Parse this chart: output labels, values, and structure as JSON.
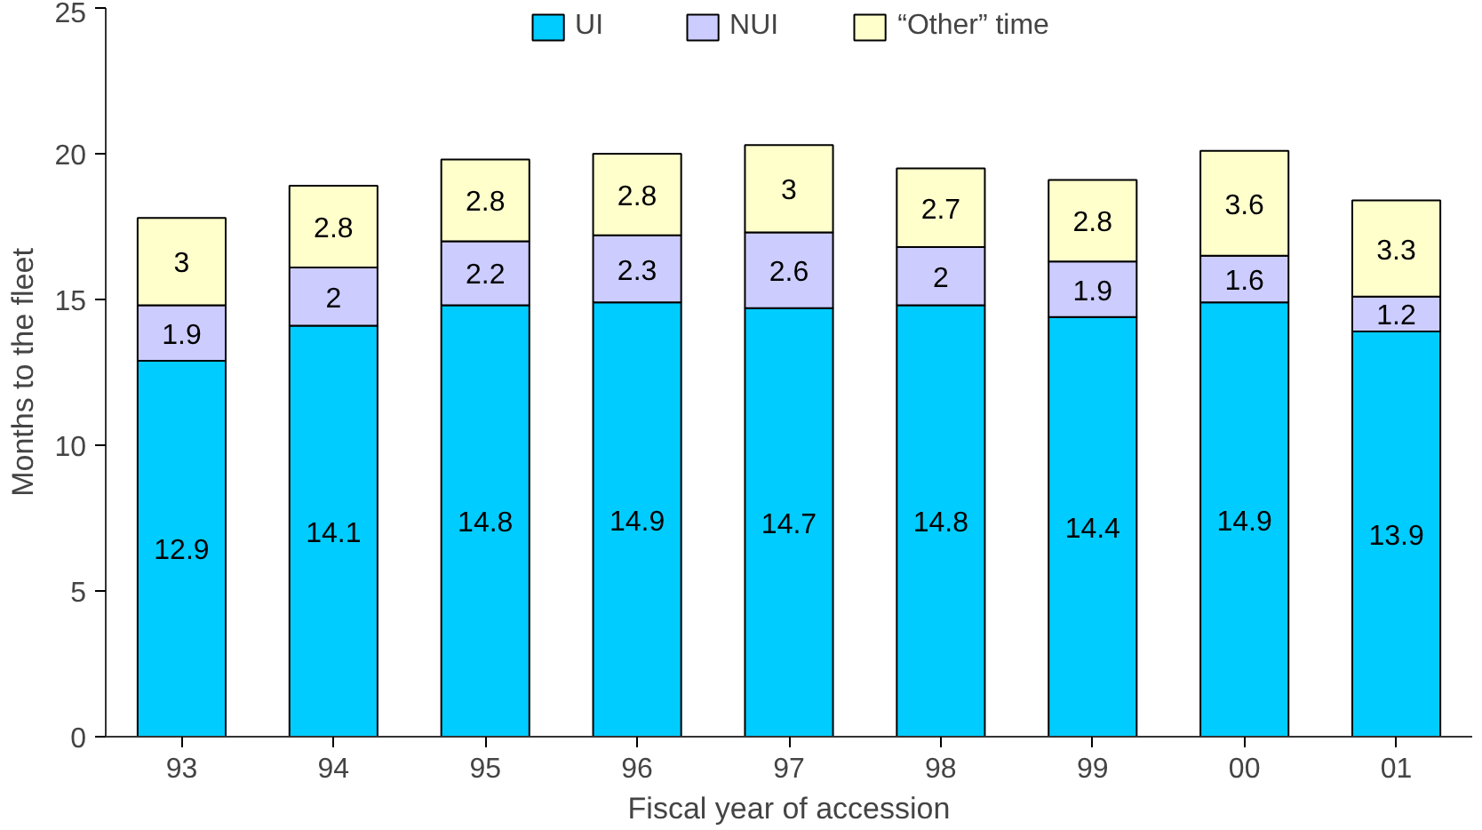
{
  "chart_data": {
    "type": "bar",
    "stacked": true,
    "xlabel": "Fiscal year of accession",
    "ylabel": "Months to the fleet",
    "categories": [
      "93",
      "94",
      "95",
      "96",
      "97",
      "98",
      "99",
      "00",
      "01"
    ],
    "series": [
      {
        "name": "UI",
        "color": "#00ccff",
        "values": [
          12.9,
          14.1,
          14.8,
          14.9,
          14.7,
          14.8,
          14.4,
          14.9,
          13.9
        ]
      },
      {
        "name": "NUI",
        "color": "#ccccff",
        "values": [
          1.9,
          2,
          2.2,
          2.3,
          2.6,
          2,
          1.9,
          1.6,
          1.2
        ]
      },
      {
        "name": "“Other” time",
        "color": "#ffffcc",
        "values": [
          3,
          2.8,
          2.8,
          2.8,
          3,
          2.7,
          2.8,
          3.6,
          3.3
        ]
      }
    ],
    "ylim": [
      0,
      25
    ],
    "yticks": [
      0,
      5,
      10,
      15,
      20,
      25
    ],
    "data_labels": true,
    "legend": "top",
    "grid": false
  }
}
